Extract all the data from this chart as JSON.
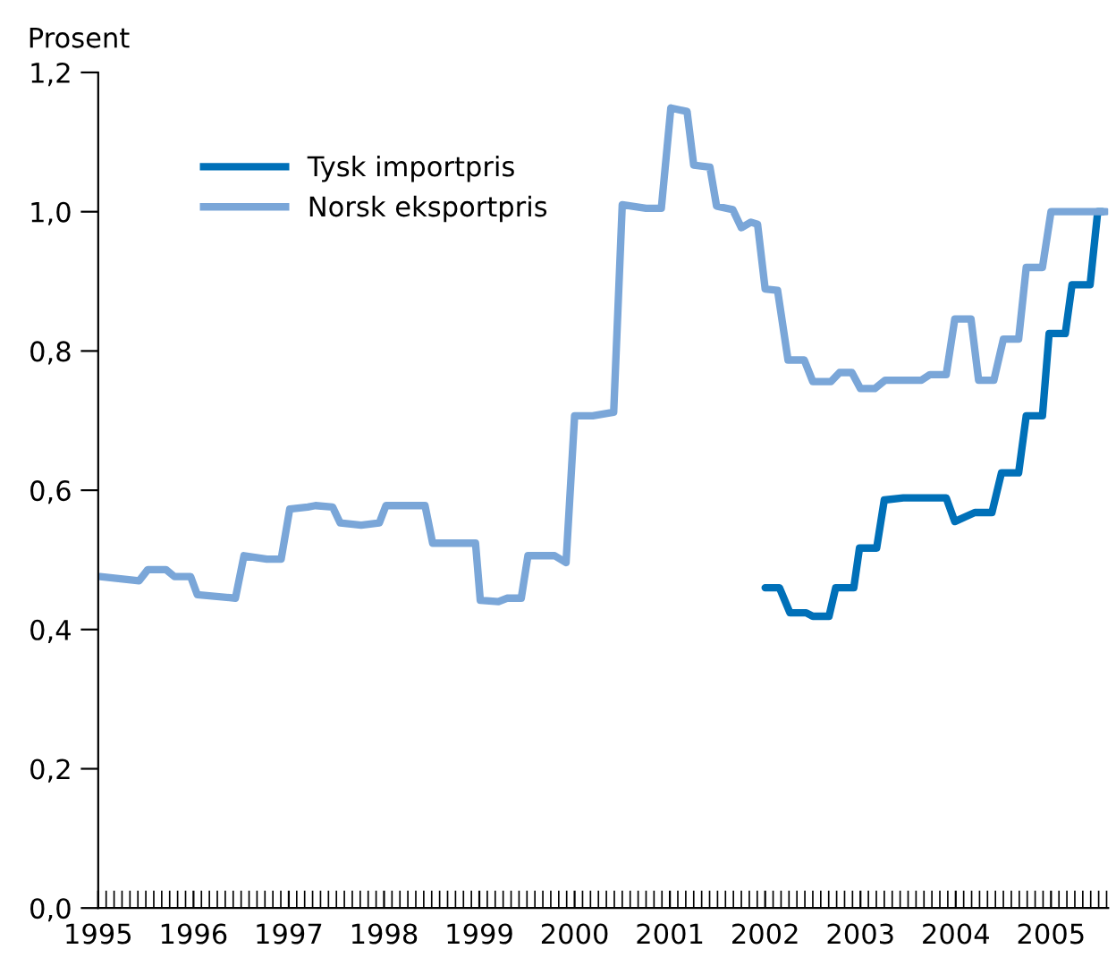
{
  "chart_data": {
    "type": "line",
    "ylabel": "Prosent",
    "xlim": [
      1995,
      2005.6
    ],
    "xticks": [
      1995,
      1996,
      1997,
      1998,
      1999,
      2000,
      2001,
      2002,
      2003,
      2004,
      2005
    ],
    "ylim": [
      0,
      1.2
    ],
    "yticks": [
      {
        "value": 0,
        "label": "0,0"
      },
      {
        "value": 0.2,
        "label": "0,2"
      },
      {
        "value": 0.4,
        "label": "0,4"
      },
      {
        "value": 0.6,
        "label": "0,6"
      },
      {
        "value": 0.8,
        "label": "0,8"
      },
      {
        "value": 1.0,
        "label": "1,0"
      },
      {
        "value": 1.2,
        "label": "1,2"
      }
    ],
    "grid": false,
    "legend": "top left",
    "line_style": "solid",
    "marker": "none",
    "series": [
      {
        "name": "Tysk importpris",
        "color": "#0070b8",
        "x": [
          2002.0,
          2002.15,
          2002.26,
          2002.43,
          2002.5,
          2002.67,
          2002.74,
          2002.93,
          2002.99,
          2003.17,
          2003.25,
          2003.45,
          2003.9,
          2003.99,
          2004.2,
          2004.38,
          2004.48,
          2004.66,
          2004.74,
          2004.91,
          2004.98,
          2005.15,
          2005.22,
          2005.41,
          2005.49,
          2005.54
        ],
        "values": [
          0.46,
          0.46,
          0.424,
          0.424,
          0.419,
          0.419,
          0.46,
          0.46,
          0.517,
          0.517,
          0.586,
          0.589,
          0.589,
          0.555,
          0.568,
          0.568,
          0.625,
          0.625,
          0.707,
          0.707,
          0.825,
          0.825,
          0.895,
          0.895,
          1.0,
          1.0
        ]
      },
      {
        "name": "Norsk eksportpris",
        "color": "#7aa6d8",
        "x": [
          1995.02,
          1995.43,
          1995.52,
          1995.71,
          1995.8,
          1995.97,
          1996.04,
          1996.44,
          1996.53,
          1996.77,
          1996.92,
          1997.01,
          1997.2,
          1997.28,
          1997.46,
          1997.54,
          1997.76,
          1997.95,
          1998.02,
          1998.43,
          1998.51,
          1998.96,
          1999.01,
          1999.2,
          1999.29,
          1999.44,
          1999.51,
          1999.79,
          1999.91,
          2000.0,
          2000.19,
          2000.41,
          2000.5,
          2000.75,
          2000.91,
          2001.01,
          2001.18,
          2001.25,
          2001.42,
          2001.49,
          2001.66,
          2001.75,
          2001.85,
          2001.92,
          2002.0,
          2002.13,
          2002.24,
          2002.41,
          2002.5,
          2002.69,
          2002.78,
          2002.91,
          2003.0,
          2003.15,
          2003.26,
          2003.64,
          2003.73,
          2003.9,
          2003.99,
          2004.16,
          2004.24,
          2004.4,
          2004.5,
          2004.66,
          2004.74,
          2004.91,
          2005.0,
          2005.58
        ],
        "values": [
          0.476,
          0.47,
          0.486,
          0.486,
          0.476,
          0.476,
          0.45,
          0.445,
          0.506,
          0.501,
          0.501,
          0.573,
          0.576,
          0.578,
          0.576,
          0.553,
          0.55,
          0.553,
          0.578,
          0.578,
          0.524,
          0.524,
          0.442,
          0.44,
          0.445,
          0.445,
          0.506,
          0.506,
          0.496,
          0.707,
          0.707,
          0.712,
          1.01,
          1.005,
          1.005,
          1.149,
          1.144,
          1.067,
          1.064,
          1.008,
          1.003,
          0.977,
          0.985,
          0.982,
          0.889,
          0.887,
          0.787,
          0.787,
          0.756,
          0.756,
          0.769,
          0.769,
          0.746,
          0.746,
          0.758,
          0.758,
          0.766,
          0.766,
          0.846,
          0.846,
          0.758,
          0.758,
          0.817,
          0.817,
          0.92,
          0.92,
          1.0,
          1.0
        ]
      }
    ]
  }
}
